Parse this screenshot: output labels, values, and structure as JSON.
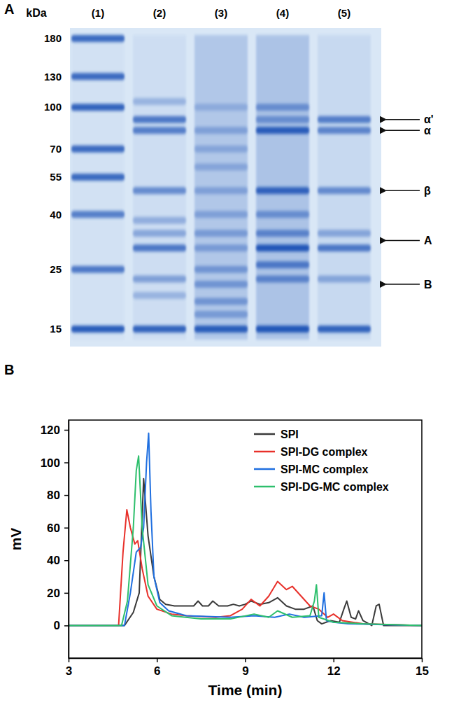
{
  "gel": {
    "panel_label": "A",
    "axis_label": "kDa",
    "color": "#2457b8",
    "ylim": [
      15,
      180
    ],
    "yticks": [
      180,
      130,
      100,
      70,
      55,
      40,
      25,
      15
    ],
    "lanes": [
      {
        "label": "(1)",
        "background": 0.05,
        "bands": [
          {
            "kda": 180,
            "intensity": 0.85
          },
          {
            "kda": 130,
            "intensity": 0.85
          },
          {
            "kda": 100,
            "intensity": 0.9
          },
          {
            "kda": 70,
            "intensity": 0.85
          },
          {
            "kda": 55,
            "intensity": 0.85
          },
          {
            "kda": 40,
            "intensity": 0.7
          },
          {
            "kda": 25,
            "intensity": 0.75
          },
          {
            "kda": 15,
            "intensity": 0.95
          }
        ]
      },
      {
        "label": "(2)",
        "background": 0.1,
        "bands": [
          {
            "kda": 105,
            "intensity": 0.3
          },
          {
            "kda": 90,
            "intensity": 0.75
          },
          {
            "kda": 82,
            "intensity": 0.7
          },
          {
            "kda": 49,
            "intensity": 0.6
          },
          {
            "kda": 38,
            "intensity": 0.35
          },
          {
            "kda": 34,
            "intensity": 0.4
          },
          {
            "kda": 30,
            "intensity": 0.75
          },
          {
            "kda": 23,
            "intensity": 0.45
          },
          {
            "kda": 20,
            "intensity": 0.3
          },
          {
            "kda": 15,
            "intensity": 0.9
          }
        ]
      },
      {
        "label": "(3)",
        "background": 0.35,
        "bands": [
          {
            "kda": 100,
            "intensity": 0.25
          },
          {
            "kda": 82,
            "intensity": 0.35
          },
          {
            "kda": 70,
            "intensity": 0.3
          },
          {
            "kda": 60,
            "intensity": 0.3
          },
          {
            "kda": 49,
            "intensity": 0.35
          },
          {
            "kda": 40,
            "intensity": 0.35
          },
          {
            "kda": 34,
            "intensity": 0.4
          },
          {
            "kda": 30,
            "intensity": 0.4
          },
          {
            "kda": 25,
            "intensity": 0.45
          },
          {
            "kda": 22,
            "intensity": 0.45
          },
          {
            "kda": 19,
            "intensity": 0.45
          },
          {
            "kda": 17,
            "intensity": 0.4
          },
          {
            "kda": 15,
            "intensity": 0.95
          }
        ]
      },
      {
        "label": "(4)",
        "background": 0.4,
        "bands": [
          {
            "kda": 100,
            "intensity": 0.5
          },
          {
            "kda": 90,
            "intensity": 0.5
          },
          {
            "kda": 82,
            "intensity": 0.95
          },
          {
            "kda": 49,
            "intensity": 0.9
          },
          {
            "kda": 40,
            "intensity": 0.5
          },
          {
            "kda": 34,
            "intensity": 0.6
          },
          {
            "kda": 30,
            "intensity": 1.0
          },
          {
            "kda": 26,
            "intensity": 0.7
          },
          {
            "kda": 23,
            "intensity": 0.6
          },
          {
            "kda": 15,
            "intensity": 1.0
          }
        ]
      },
      {
        "label": "(5)",
        "background": 0.15,
        "bands": [
          {
            "kda": 90,
            "intensity": 0.7
          },
          {
            "kda": 82,
            "intensity": 0.65
          },
          {
            "kda": 49,
            "intensity": 0.6
          },
          {
            "kda": 34,
            "intensity": 0.4
          },
          {
            "kda": 30,
            "intensity": 0.75
          },
          {
            "kda": 23,
            "intensity": 0.4
          },
          {
            "kda": 15,
            "intensity": 0.9
          }
        ]
      }
    ],
    "markers": [
      {
        "label": "α'",
        "kda": 90
      },
      {
        "label": "α",
        "kda": 82
      },
      {
        "label": "β",
        "kda": 49
      },
      {
        "label": "A",
        "kda": 32
      },
      {
        "label": "B",
        "kda": 22
      }
    ]
  },
  "chart_data": {
    "type": "line",
    "panel_label": "B",
    "x_label": "Time (min)",
    "y_label": "mV",
    "xlim": [
      3,
      15
    ],
    "xticks": [
      3,
      6,
      9,
      12,
      15
    ],
    "ylim": [
      -20,
      126
    ],
    "yticks": [
      0,
      20,
      40,
      60,
      80,
      100,
      120
    ],
    "legend": "upper right",
    "series": [
      {
        "name": "SPI",
        "color": "#3a3a3a",
        "x": [
          3,
          4.9,
          5.2,
          5.4,
          5.55,
          5.7,
          5.9,
          6.1,
          6.3,
          6.6,
          7.0,
          7.25,
          7.4,
          7.55,
          7.75,
          7.9,
          8.1,
          8.4,
          8.6,
          8.8,
          9.0,
          9.2,
          9.5,
          9.8,
          10.1,
          10.4,
          10.7,
          11.0,
          11.3,
          11.45,
          11.6,
          11.9,
          12.2,
          12.35,
          12.45,
          12.6,
          12.75,
          12.85,
          13.0,
          13.3,
          13.45,
          13.55,
          13.7,
          15
        ],
        "values": [
          0,
          0,
          8,
          20,
          90,
          55,
          30,
          16,
          13,
          12,
          12,
          12,
          15,
          12,
          12,
          15,
          12,
          12,
          13,
          12,
          13,
          15,
          13,
          14,
          17,
          12,
          10,
          10,
          12,
          3,
          1,
          3,
          2,
          10,
          15,
          5,
          4,
          9,
          3,
          0,
          12,
          13,
          0,
          0
        ]
      },
      {
        "name": "SPI-DG complex",
        "color": "#e8302a",
        "x": [
          3,
          4.7,
          4.85,
          4.98,
          5.1,
          5.25,
          5.35,
          5.5,
          5.7,
          6.0,
          6.5,
          7.0,
          8.0,
          8.5,
          8.9,
          9.2,
          9.5,
          9.8,
          10.1,
          10.4,
          10.6,
          10.9,
          11.2,
          11.5,
          11.8,
          12.0,
          12.3,
          13.0,
          15
        ],
        "values": [
          0,
          0,
          45,
          71,
          60,
          50,
          52,
          35,
          18,
          10,
          7,
          6,
          5,
          6,
          10,
          16,
          12,
          18,
          27,
          22,
          24,
          18,
          12,
          10,
          5,
          7,
          3,
          1,
          0
        ]
      },
      {
        "name": "SPI-MC complex",
        "color": "#1f6fe0",
        "x": [
          3,
          4.9,
          5.1,
          5.3,
          5.45,
          5.55,
          5.65,
          5.72,
          5.8,
          5.9,
          6.1,
          6.4,
          7.0,
          8.5,
          9.3,
          10.0,
          10.5,
          11.0,
          11.6,
          11.68,
          11.76,
          12.0,
          12.5,
          15
        ],
        "values": [
          0,
          0,
          20,
          45,
          48,
          60,
          100,
          118,
          70,
          30,
          14,
          9,
          6,
          5,
          6,
          5,
          7,
          5,
          6,
          20,
          3,
          2,
          1,
          0
        ]
      },
      {
        "name": "SPI-DG-MC complex",
        "color": "#2dbf6c",
        "x": [
          3,
          4.8,
          5.0,
          5.2,
          5.3,
          5.38,
          5.5,
          5.7,
          6.0,
          6.5,
          7.5,
          8.5,
          9.3,
          9.8,
          10.1,
          10.6,
          11.2,
          11.35,
          11.42,
          11.5,
          12.0,
          13.0,
          15
        ],
        "values": [
          0,
          0,
          15,
          60,
          95,
          104,
          60,
          25,
          12,
          6,
          4,
          4,
          7,
          5,
          9,
          5,
          6,
          15,
          25,
          5,
          2,
          1,
          0
        ]
      }
    ]
  }
}
